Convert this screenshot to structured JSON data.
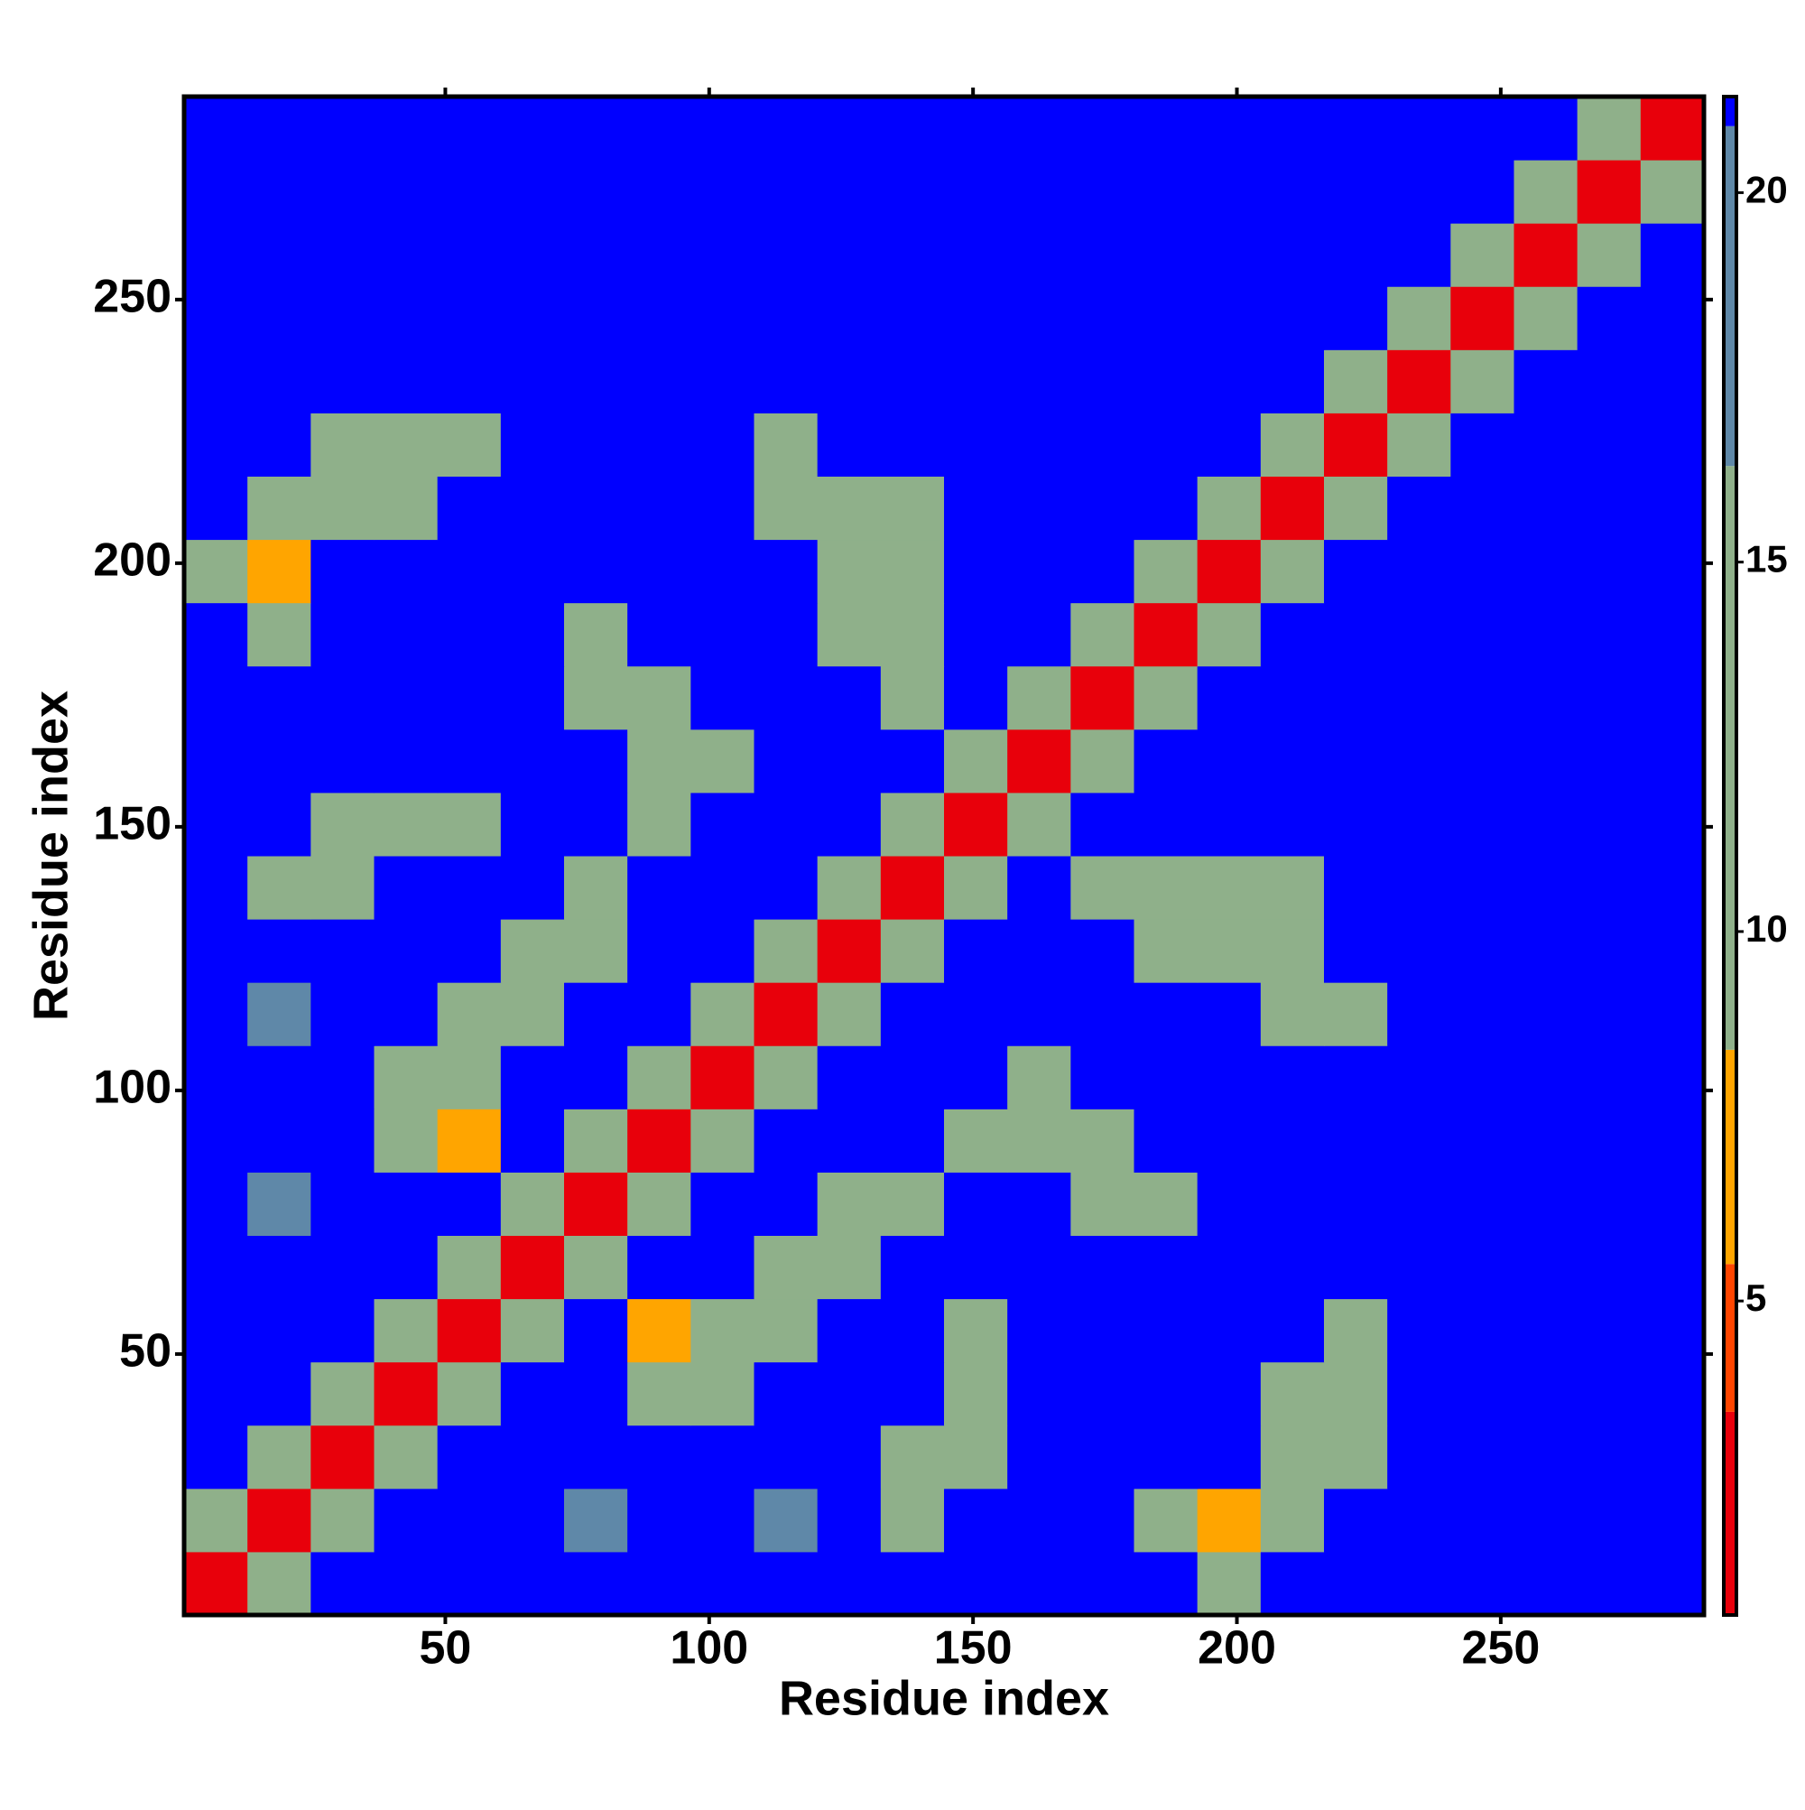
{
  "chart_data": {
    "type": "heatmap",
    "xlabel": "Residue index",
    "ylabel": "Residue index",
    "xbins": [
      0.5,
      12.5,
      24.5,
      36.5,
      48.5,
      60.5,
      72.5,
      84.5,
      96.5,
      108.5,
      120.5,
      132.5,
      144.5,
      156.5,
      168.5,
      180.5,
      192.5,
      204.5,
      216.5,
      228.5,
      240.5,
      252.5,
      264.5,
      276.5,
      288.5
    ],
    "ybins": [
      0.5,
      12.5,
      24.5,
      36.5,
      48.5,
      60.5,
      72.5,
      84.5,
      96.5,
      108.5,
      120.5,
      132.5,
      144.5,
      156.5,
      168.5,
      180.5,
      192.5,
      204.5,
      216.5,
      228.5,
      240.5,
      252.5,
      264.5,
      276.5,
      288.5
    ],
    "xlim": [
      0.5,
      288.5
    ],
    "ylim": [
      0.5,
      288.5
    ],
    "xticks": [
      50,
      100,
      150,
      200,
      250
    ],
    "yticks": [
      50,
      100,
      150,
      200,
      250
    ],
    "values": [
      [
        3,
        13,
        21,
        21,
        21,
        21,
        21,
        21,
        21,
        21,
        21,
        21,
        21,
        21,
        21,
        21,
        13,
        21,
        21,
        21,
        21,
        21,
        21,
        21
      ],
      [
        13,
        3,
        13,
        21,
        21,
        21,
        18,
        21,
        21,
        18,
        21,
        11,
        21,
        21,
        21,
        10,
        7,
        10,
        21,
        21,
        21,
        21,
        21,
        21
      ],
      [
        21,
        13,
        3,
        13,
        21,
        21,
        21,
        21,
        21,
        21,
        21,
        10,
        10,
        21,
        21,
        21,
        21,
        9,
        12,
        21,
        21,
        21,
        21,
        21
      ],
      [
        21,
        21,
        13,
        3,
        13,
        21,
        21,
        12,
        10,
        21,
        21,
        21,
        9,
        21,
        21,
        21,
        21,
        13,
        10,
        21,
        21,
        21,
        21,
        21
      ],
      [
        21,
        21,
        21,
        13,
        3,
        13,
        21,
        7,
        9,
        10,
        21,
        21,
        13,
        21,
        21,
        21,
        21,
        21,
        12,
        21,
        21,
        21,
        21,
        21
      ],
      [
        21,
        21,
        21,
        21,
        13,
        3,
        10,
        21,
        21,
        10,
        11,
        21,
        21,
        21,
        21,
        21,
        21,
        21,
        21,
        21,
        21,
        21,
        21,
        21
      ],
      [
        21,
        18,
        21,
        21,
        21,
        10,
        3,
        13,
        21,
        21,
        12,
        13,
        21,
        21,
        11,
        12,
        21,
        21,
        21,
        21,
        21,
        21,
        21,
        21
      ],
      [
        21,
        21,
        21,
        12,
        7,
        21,
        13,
        3,
        13,
        21,
        21,
        21,
        10,
        10,
        12,
        21,
        21,
        21,
        21,
        21,
        21,
        21,
        21,
        21
      ],
      [
        21,
        21,
        21,
        10,
        9,
        21,
        21,
        13,
        3,
        13,
        21,
        21,
        21,
        12,
        21,
        21,
        21,
        21,
        21,
        21,
        21,
        21,
        21,
        21
      ],
      [
        21,
        18,
        21,
        21,
        10,
        10,
        21,
        21,
        13,
        3,
        13,
        21,
        21,
        21,
        21,
        21,
        21,
        10,
        11,
        21,
        21,
        21,
        21,
        21
      ],
      [
        21,
        21,
        21,
        21,
        21,
        11,
        12,
        21,
        21,
        13,
        3,
        13,
        21,
        21,
        21,
        14,
        11,
        9,
        21,
        21,
        21,
        21,
        21,
        21
      ],
      [
        21,
        11,
        10,
        21,
        21,
        21,
        13,
        21,
        21,
        21,
        13,
        3,
        13,
        21,
        11,
        10,
        12,
        13,
        21,
        21,
        21,
        21,
        21,
        21
      ],
      [
        21,
        21,
        10,
        9,
        13,
        21,
        21,
        10,
        21,
        21,
        21,
        13,
        3,
        13,
        21,
        21,
        21,
        21,
        21,
        21,
        21,
        21,
        21,
        21
      ],
      [
        21,
        21,
        21,
        21,
        21,
        21,
        21,
        10,
        12,
        21,
        21,
        21,
        13,
        3,
        13,
        21,
        21,
        21,
        21,
        21,
        21,
        21,
        21,
        21
      ],
      [
        21,
        21,
        21,
        21,
        21,
        21,
        11,
        12,
        21,
        21,
        21,
        11,
        21,
        13,
        3,
        13,
        21,
        21,
        21,
        21,
        21,
        21,
        21,
        21
      ],
      [
        21,
        10,
        21,
        21,
        21,
        21,
        12,
        21,
        21,
        21,
        14,
        10,
        21,
        21,
        13,
        3,
        13,
        21,
        21,
        21,
        21,
        21,
        21,
        21
      ],
      [
        13,
        7,
        21,
        21,
        21,
        21,
        21,
        21,
        21,
        21,
        11,
        12,
        21,
        21,
        21,
        13,
        3,
        13,
        21,
        21,
        21,
        21,
        21,
        21
      ],
      [
        21,
        10,
        9,
        13,
        21,
        21,
        21,
        21,
        21,
        10,
        9,
        13,
        21,
        21,
        21,
        21,
        13,
        3,
        13,
        21,
        21,
        21,
        21,
        21
      ],
      [
        21,
        21,
        12,
        10,
        12,
        21,
        21,
        21,
        21,
        11,
        21,
        21,
        21,
        21,
        21,
        21,
        21,
        13,
        3,
        13,
        21,
        21,
        21,
        21
      ],
      [
        21,
        21,
        21,
        21,
        21,
        21,
        21,
        21,
        21,
        21,
        21,
        21,
        21,
        21,
        21,
        21,
        21,
        21,
        13,
        3,
        13,
        21,
        21,
        21
      ],
      [
        21,
        21,
        21,
        21,
        21,
        21,
        21,
        21,
        21,
        21,
        21,
        21,
        21,
        21,
        21,
        21,
        21,
        21,
        21,
        13,
        3,
        13,
        21,
        21
      ],
      [
        21,
        21,
        21,
        21,
        21,
        21,
        21,
        21,
        21,
        21,
        21,
        21,
        21,
        21,
        21,
        21,
        21,
        21,
        21,
        21,
        13,
        3,
        13,
        21
      ],
      [
        21,
        21,
        21,
        21,
        21,
        21,
        21,
        21,
        21,
        21,
        21,
        21,
        21,
        21,
        21,
        21,
        21,
        21,
        21,
        21,
        21,
        13,
        3,
        13
      ],
      [
        21,
        21,
        21,
        21,
        21,
        21,
        21,
        21,
        21,
        21,
        21,
        21,
        21,
        21,
        21,
        21,
        21,
        21,
        21,
        21,
        21,
        21,
        13,
        3
      ]
    ],
    "colorbar": {
      "lim": [
        0.75,
        21.3
      ],
      "ticks": [
        5,
        10,
        15,
        20
      ],
      "bands": [
        {
          "from": 0.75,
          "to": 3.5,
          "color": "#e8000b"
        },
        {
          "from": 3.5,
          "to": 5.5,
          "color": "#ff4500"
        },
        {
          "from": 5.5,
          "to": 8.4,
          "color": "#ffa500"
        },
        {
          "from": 8.4,
          "to": 16.3,
          "color": "#8fb08a"
        },
        {
          "from": 16.3,
          "to": 20.9,
          "color": "#5f88a8"
        },
        {
          "from": 20.9,
          "to": 21.3,
          "color": "#0000ff"
        }
      ]
    }
  }
}
